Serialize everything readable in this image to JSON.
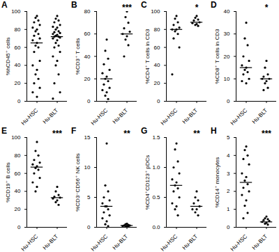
{
  "chart_data": [
    {
      "type": "scatter",
      "title": "A",
      "y_label": "%hCD45⁺ cells",
      "categories": [
        "Hu-HSC",
        "Hu-BLT"
      ],
      "color": "#000000",
      "values": [
        [
          95,
          93,
          90,
          88,
          85,
          82,
          80,
          78,
          75,
          73,
          70,
          68,
          65,
          62,
          60,
          55,
          45,
          40,
          35,
          30,
          25,
          20,
          15,
          10,
          5
        ],
        [
          95,
          92,
          90,
          88,
          85,
          83,
          82,
          80,
          78,
          77,
          76,
          75,
          74,
          73,
          72,
          72,
          71,
          70,
          68,
          65,
          62,
          60,
          55,
          50,
          45,
          40,
          30,
          20,
          10,
          3
        ]
      ],
      "medians": [
        65,
        72
      ],
      "ylim": [
        0,
        100
      ],
      "yticks": [
        0,
        20,
        40,
        60,
        80,
        100
      ]
    },
    {
      "type": "scatter",
      "title": "B",
      "y_label": "%CD3⁺ T cells",
      "categories": [
        "Hu-HSC",
        "Hu-BLT"
      ],
      "color": "#000000",
      "values": [
        [
          55,
          45,
          38,
          33,
          28,
          25,
          22,
          20,
          18,
          15,
          12,
          10,
          8,
          5,
          2
        ],
        [
          80,
          75,
          70,
          65,
          62,
          60,
          58,
          55,
          50,
          40
        ]
      ],
      "medians": [
        20,
        60
      ],
      "annotation": "***",
      "ylim": [
        0,
        80
      ],
      "yticks": [
        0,
        20,
        40,
        60,
        80
      ]
    },
    {
      "type": "scatter",
      "title": "C",
      "y_label": "%CD4⁺ T cells in CD3",
      "categories": [
        "Hu-HSC",
        "Hu-BLT"
      ],
      "color": "#000000",
      "values": [
        [
          95,
          92,
          88,
          85,
          82,
          80,
          80,
          78,
          75,
          70,
          60,
          30
        ],
        [
          95,
          93,
          91,
          90,
          88,
          87,
          86,
          85,
          84
        ]
      ],
      "medians": [
        80,
        88
      ],
      "annotation": "*",
      "ylim": [
        0,
        100
      ],
      "yticks": [
        0,
        20,
        40,
        60,
        80,
        100
      ]
    },
    {
      "type": "scatter",
      "title": "D",
      "y_label": "%CD8⁺ T cells in CD3",
      "categories": [
        "Hu-HSC",
        "Hu-BLT"
      ],
      "color": "#000000",
      "values": [
        [
          35,
          28,
          25,
          20,
          18,
          16,
          15,
          14,
          13,
          12,
          10,
          9,
          8
        ],
        [
          18,
          15,
          12,
          11,
          10,
          10,
          9,
          8,
          6,
          5
        ]
      ],
      "medians": [
        15,
        10
      ],
      "annotation": "*",
      "ylim": [
        0,
        40
      ],
      "yticks": [
        0,
        10,
        20,
        30,
        40
      ]
    },
    {
      "type": "scatter",
      "title": "E",
      "y_label": "%CD19⁺ B cells",
      "categories": [
        "Hu-HSC",
        "Hu-BLT"
      ],
      "color": "#000000",
      "values": [
        [
          95,
          85,
          80,
          75,
          72,
          70,
          68,
          66,
          64,
          60,
          55,
          50,
          45,
          40
        ],
        [
          45,
          40,
          36,
          34,
          33,
          32,
          30,
          28,
          25
        ]
      ],
      "medians": [
        67,
        33
      ],
      "annotation": "***",
      "ylim": [
        0,
        100
      ],
      "yticks": [
        0,
        20,
        40,
        60,
        80,
        100
      ]
    },
    {
      "type": "scatter",
      "title": "F",
      "y_label": "%CD3⁻CD56⁺ NK cells",
      "categories": [
        "Hu-HSC",
        "Hu-BLT"
      ],
      "color": "#000000",
      "values": [
        [
          14,
          7,
          6,
          5,
          4.5,
          4,
          3.5,
          3.5,
          3,
          2.5,
          2,
          1.5,
          1,
          0.5,
          0.2
        ],
        [
          0.6,
          0.5,
          0.4,
          0.3,
          0.3,
          0.2,
          0.2,
          0.1,
          0.1
        ]
      ],
      "medians": [
        3.5,
        0.3
      ],
      "annotation": "**",
      "ylim": [
        0,
        15
      ],
      "yticks": [
        0,
        5,
        10,
        15
      ]
    },
    {
      "type": "scatter",
      "title": "G",
      "y_label": "%CD4⁺CD123⁺ pDCs",
      "categories": [
        "Hu-HSC",
        "Hu-BLT"
      ],
      "color": "#000000",
      "values": [
        [
          1.4,
          1.3,
          1.1,
          1.0,
          0.9,
          0.8,
          0.75,
          0.7,
          0.65,
          0.6,
          0.5,
          0.4,
          0.35,
          0.3,
          0.2
        ],
        [
          0.6,
          0.5,
          0.45,
          0.4,
          0.35,
          0.3,
          0.3,
          0.25,
          0.2
        ]
      ],
      "medians": [
        0.7,
        0.35
      ],
      "annotation": "**",
      "ylim": [
        0,
        1.5
      ],
      "yticks": [
        {
          "value": 0,
          "label": "0.0"
        },
        0.5,
        {
          "value": 1,
          "label": "1.0"
        },
        1.5
      ]
    },
    {
      "type": "scatter",
      "title": "H",
      "y_label": "%CD14⁺ monocytes",
      "categories": [
        "Hu-HSC",
        "Hu-BLT"
      ],
      "color": "#000000",
      "values": [
        [
          4.5,
          4.3,
          4,
          3.8,
          3.5,
          3,
          2.8,
          2.6,
          2.4,
          2.2,
          2,
          1.8,
          1.5,
          1.2,
          0.8,
          0.5
        ],
        [
          0.6,
          0.5,
          0.45,
          0.4,
          0.35,
          0.3,
          0.25,
          0.2,
          0.15
        ]
      ],
      "medians": [
        2.5,
        0.3
      ],
      "annotation": "***",
      "ylim": [
        0,
        5
      ],
      "yticks": [
        0,
        1,
        2,
        3,
        4,
        5
      ]
    }
  ]
}
